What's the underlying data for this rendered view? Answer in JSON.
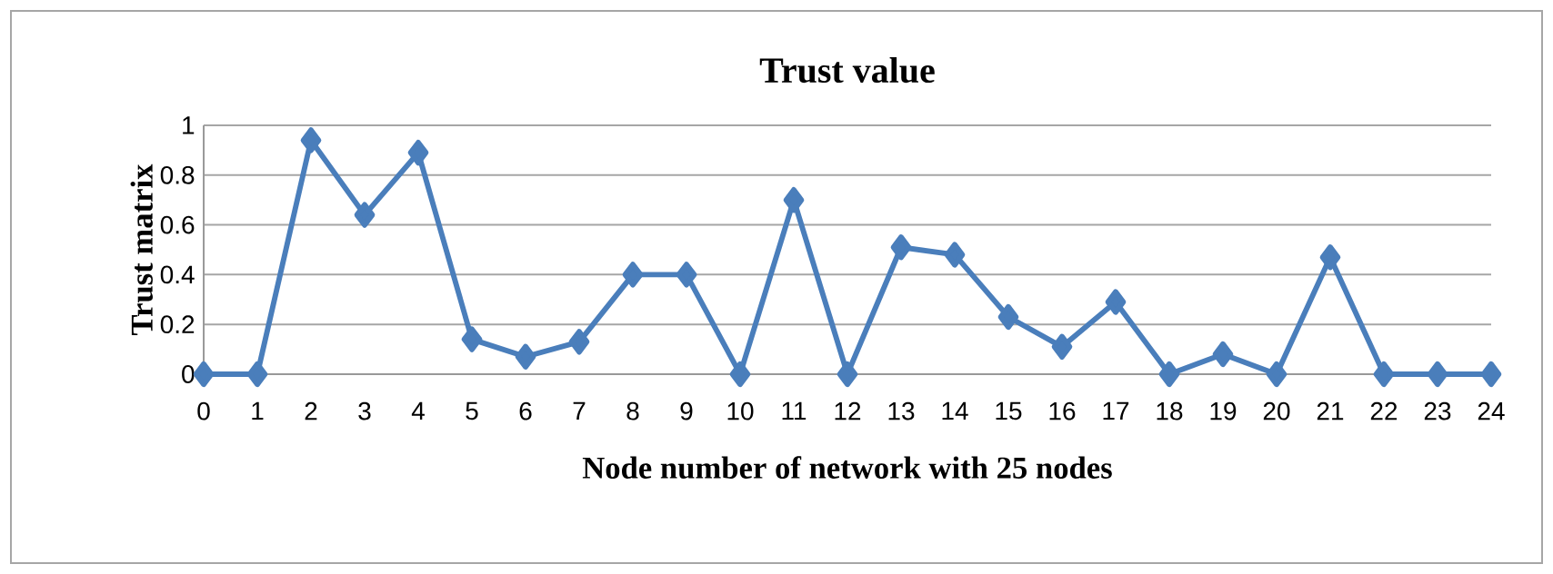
{
  "chart_data": {
    "type": "line",
    "title": "Trust value",
    "xlabel": "Node number of network with 25 nodes",
    "ylabel": "Trust matrix",
    "categories": [
      "0",
      "1",
      "2",
      "3",
      "4",
      "5",
      "6",
      "7",
      "8",
      "9",
      "10",
      "11",
      "12",
      "13",
      "14",
      "15",
      "16",
      "17",
      "18",
      "19",
      "20",
      "21",
      "22",
      "23",
      "24"
    ],
    "series": [
      {
        "color": "#4a7ebb",
        "values": [
          0,
          0,
          0.94,
          0.64,
          0.89,
          0.14,
          0.07,
          0.13,
          0.4,
          0.4,
          0,
          0.7,
          0,
          0.51,
          0.48,
          0.23,
          0.11,
          0.29,
          0,
          0.08,
          0,
          0.47,
          0,
          0,
          0
        ]
      }
    ],
    "ylim": [
      0,
      1
    ],
    "yticks": [
      0,
      0.2,
      0.4,
      0.6,
      0.8,
      1
    ],
    "grid": "y",
    "marker": "diamond",
    "line_style": "solid"
  }
}
